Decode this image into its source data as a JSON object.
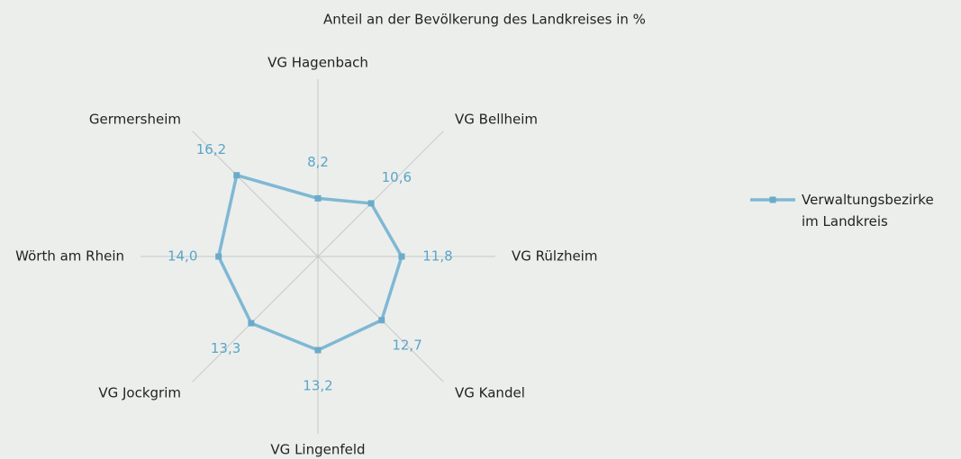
{
  "chart_data": {
    "type": "radar",
    "title": "Anteil an der Bevölkerung des Landkreises in %",
    "categories": [
      "VG Hagenbach",
      "VG Bellheim",
      "VG Rülzheim",
      "VG Kandel",
      "VG Lingenfeld",
      "VG Jockgrim",
      "Wörth am Rhein",
      "Germersheim"
    ],
    "series": [
      {
        "name": "Verwaltungsbezirke im Landkreis",
        "color": "#7fb8d4",
        "values": [
          8.2,
          10.6,
          11.8,
          12.7,
          13.2,
          13.3,
          14.0,
          16.2
        ],
        "value_labels": [
          "8,2",
          "10,6",
          "11,8",
          "12,7",
          "13,2",
          "13,3",
          "14,0",
          "16,2"
        ]
      }
    ],
    "rlim": [
      0,
      25
    ],
    "legend": "right"
  }
}
